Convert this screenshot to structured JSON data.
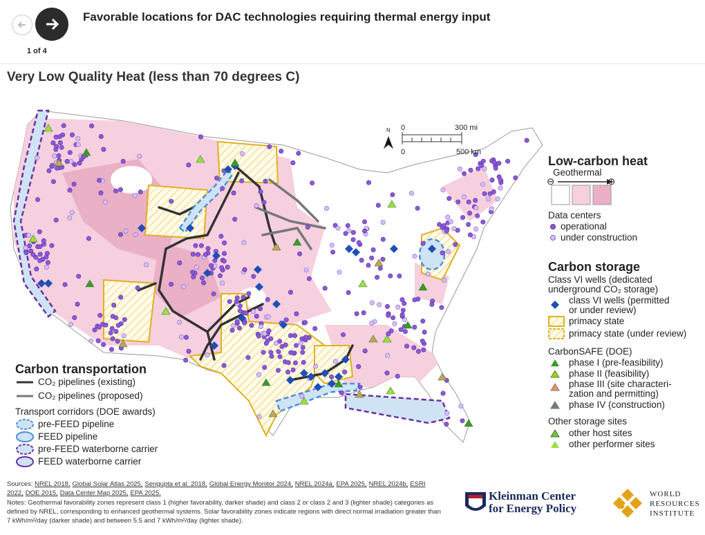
{
  "header": {
    "title": "Favorable locations for DAC technologies requiring thermal energy input",
    "page_indicator": "1 of 4"
  },
  "map": {
    "title": "Very Low Quality Heat (less than 70 degrees C)",
    "scale": {
      "north": "N",
      "mi_zero": "0",
      "mi": "300 mi",
      "km_zero": "0",
      "km": "500 km"
    }
  },
  "legend_heat": {
    "title": "Low-carbon heat",
    "geothermal": "Geothermal",
    "minus": "⊖",
    "plus": "⊕",
    "data_centers": {
      "title": "Data centers",
      "items": [
        "operational",
        "under construction"
      ]
    }
  },
  "legend_storage": {
    "title": "Carbon storage",
    "class_vi": {
      "title": [
        "Class VI wells (dedicated",
        "underground CO₂ storage)"
      ],
      "wells": [
        "class VI wells (permitted",
        "or under review)"
      ],
      "primacy": "primacy state",
      "primacy_review": "primacy state (under review)"
    },
    "carbonsafe": {
      "title": "CarbonSAFE (DOE)",
      "items": [
        "phase I (pre-feasibility)",
        "phase II (feasibility)",
        "phase III (site characteri-",
        "zation and permitting)",
        "phase IV (construction)"
      ]
    },
    "other": {
      "title": "Other storage sites",
      "items": [
        "other host sites",
        "other performer sites"
      ]
    }
  },
  "legend_transport": {
    "title": "Carbon transportation",
    "pipelines": [
      "CO₂ pipelines (existing)",
      "CO₂ pipelines (proposed)"
    ],
    "corridors": {
      "title": "Transport corridors (DOE awards)",
      "items": [
        "pre-FEED pipeline",
        "FEED pipeline",
        "pre-FEED waterborne carrier",
        "FEED waterborne carrier"
      ]
    }
  },
  "footer": {
    "sources_label": "Sources:",
    "sources": [
      "NREL 2018,",
      "Global Solar Atlas 2025,",
      "Sengupta et al. 2018,",
      "Global Energy Monitor 2024,",
      "NREL 2024a,",
      "EPA 2025,",
      "NREL 2024b,",
      "ESRI 2022,",
      "DOE 2015,",
      "Data Center Map 2025,",
      "EPA 2025."
    ],
    "notes": "Notes: Geothermal favorability zones represent class 1 (higher favorability, darker shade) and class 2 or class 2 and 3 (lighter shade) categories as defined by NREL, corresponding to enhanced geothermal systems. Solar favorability zones indicate regions with direct normal irradiation greater than 7 kWh/m²/day (darker shade) and between 5.5 and 7 kWh/m²/day (lighter shade)."
  },
  "logos": {
    "kleinman": [
      "Kleinman Center",
      "for Energy Policy"
    ],
    "wri": [
      "WORLD",
      "RESOURCES",
      "INSTITUTE"
    ]
  }
}
